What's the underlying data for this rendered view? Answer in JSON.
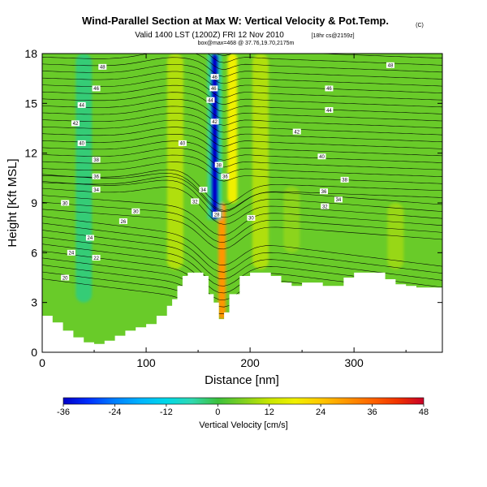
{
  "title": {
    "main": "Wind-Parallel Section at Max W: Vertical Velocity & Pot.Temp.",
    "copyright": "(C)",
    "valid": "Valid 1400 LST (1200Z) FRI 12 Nov 2010",
    "valid_suffix": "[18hr cs@2159z]",
    "subtitle": "box@max=468 @ 37.76,19.70,2175m"
  },
  "chart_data": {
    "type": "heatmap",
    "xlabel": "Distance [nm]",
    "ylabel": "Height [Kft MSL]",
    "xlim": [
      0,
      385
    ],
    "ylim": [
      0,
      18
    ],
    "x_ticks": [
      "0",
      "100",
      "200",
      "300"
    ],
    "y_ticks": [
      "0",
      "3",
      "6",
      "9",
      "12",
      "15",
      "18"
    ],
    "colorbar": {
      "label": "Vertical Velocity [cm/s]",
      "range": [
        -36,
        48
      ],
      "tick_labels": [
        "-36",
        "-24",
        "-12",
        "0",
        "12",
        "24",
        "36",
        "48"
      ],
      "stops": [
        {
          "v": -36,
          "c": "#0000c8"
        },
        {
          "v": -30,
          "c": "#0030ff"
        },
        {
          "v": -24,
          "c": "#0080ff"
        },
        {
          "v": -18,
          "c": "#00b4ff"
        },
        {
          "v": -12,
          "c": "#00d8e8"
        },
        {
          "v": -6,
          "c": "#30d8b0"
        },
        {
          "v": 0,
          "c": "#3cc03c"
        },
        {
          "v": 6,
          "c": "#80d020"
        },
        {
          "v": 12,
          "c": "#c8e600"
        },
        {
          "v": 18,
          "c": "#f0f000"
        },
        {
          "v": 24,
          "c": "#ffc800"
        },
        {
          "v": 30,
          "c": "#ff9600"
        },
        {
          "v": 36,
          "c": "#ff6400"
        },
        {
          "v": 42,
          "c": "#f03200"
        },
        {
          "v": 48,
          "c": "#c80028"
        }
      ]
    },
    "terrain": [
      [
        0,
        2.2
      ],
      [
        10,
        1.8
      ],
      [
        20,
        1.3
      ],
      [
        30,
        0.9
      ],
      [
        40,
        0.6
      ],
      [
        50,
        0.5
      ],
      [
        60,
        0.7
      ],
      [
        70,
        1.0
      ],
      [
        80,
        1.3
      ],
      [
        90,
        1.5
      ],
      [
        100,
        1.7
      ],
      [
        110,
        2.2
      ],
      [
        120,
        2.8
      ],
      [
        125,
        3.2
      ],
      [
        130,
        4.0
      ],
      [
        135,
        4.6
      ],
      [
        140,
        4.8
      ],
      [
        150,
        4.8
      ],
      [
        155,
        4.6
      ],
      [
        160,
        3.5
      ],
      [
        165,
        3.0
      ],
      [
        170,
        2.0
      ],
      [
        175,
        2.4
      ],
      [
        180,
        3.5
      ],
      [
        190,
        4.6
      ],
      [
        200,
        4.8
      ],
      [
        220,
        4.6
      ],
      [
        230,
        4.2
      ],
      [
        240,
        4.0
      ],
      [
        250,
        4.2
      ],
      [
        270,
        4.0
      ],
      [
        290,
        4.5
      ],
      [
        300,
        4.8
      ],
      [
        320,
        4.8
      ],
      [
        330,
        4.4
      ],
      [
        340,
        4.1
      ],
      [
        350,
        4.0
      ],
      [
        360,
        3.9
      ],
      [
        370,
        3.9
      ],
      [
        385,
        3.9
      ]
    ],
    "vertical_velocity_features": [
      {
        "name": "downdraft core",
        "x": 166,
        "z_range": [
          8,
          18
        ],
        "value": -36
      },
      {
        "name": "updraft core",
        "x": 173,
        "z_range": [
          2,
          9
        ],
        "value": 30
      },
      {
        "name": "upper updraft band",
        "x": 183,
        "z_range": [
          9,
          18
        ],
        "value": 18
      },
      {
        "name": "updraft plume",
        "x": 128,
        "z_range": [
          5,
          18
        ],
        "value": 10
      },
      {
        "name": "updraft plume",
        "x": 210,
        "z_range": [
          5,
          18
        ],
        "value": 10
      },
      {
        "name": "weak lift",
        "x": 240,
        "z_range": [
          6,
          10
        ],
        "value": 7
      },
      {
        "name": "weak lift",
        "x": 340,
        "z_range": [
          5,
          9
        ],
        "value": 8
      },
      {
        "name": "weak sink",
        "x": 40,
        "z_range": [
          3,
          18
        ],
        "value": -3
      }
    ],
    "contour_labels": [
      {
        "text": "48",
        "x": 58,
        "z": 17.2
      },
      {
        "text": "46",
        "x": 52,
        "z": 15.9
      },
      {
        "text": "44",
        "x": 38,
        "z": 14.9
      },
      {
        "text": "42",
        "x": 32,
        "z": 13.8
      },
      {
        "text": "40",
        "x": 38,
        "z": 12.6
      },
      {
        "text": "38",
        "x": 52,
        "z": 11.6
      },
      {
        "text": "36",
        "x": 52,
        "z": 10.6
      },
      {
        "text": "34",
        "x": 52,
        "z": 9.8
      },
      {
        "text": "30",
        "x": 22,
        "z": 9.0
      },
      {
        "text": "30",
        "x": 90,
        "z": 8.5
      },
      {
        "text": "26",
        "x": 78,
        "z": 7.9
      },
      {
        "text": "24",
        "x": 46,
        "z": 6.9
      },
      {
        "text": "24",
        "x": 28,
        "z": 6.0
      },
      {
        "text": "22",
        "x": 52,
        "z": 5.7
      },
      {
        "text": "20",
        "x": 22,
        "z": 4.5
      },
      {
        "text": "48",
        "x": 335,
        "z": 17.3
      },
      {
        "text": "46",
        "x": 276,
        "z": 15.9
      },
      {
        "text": "44",
        "x": 276,
        "z": 14.6
      },
      {
        "text": "42",
        "x": 245,
        "z": 13.3
      },
      {
        "text": "40",
        "x": 269,
        "z": 11.8
      },
      {
        "text": "38",
        "x": 291,
        "z": 10.4
      },
      {
        "text": "36",
        "x": 271,
        "z": 9.7
      },
      {
        "text": "34",
        "x": 285,
        "z": 9.2
      },
      {
        "text": "32",
        "x": 272,
        "z": 8.8
      },
      {
        "text": "30",
        "x": 201,
        "z": 8.1
      },
      {
        "text": "40",
        "x": 135,
        "z": 12.6
      },
      {
        "text": "46",
        "x": 166,
        "z": 16.6
      },
      {
        "text": "46",
        "x": 165,
        "z": 15.9
      },
      {
        "text": "44",
        "x": 162,
        "z": 15.2
      },
      {
        "text": "42",
        "x": 166,
        "z": 13.9
      },
      {
        "text": "38",
        "x": 170,
        "z": 11.3
      },
      {
        "text": "36",
        "x": 176,
        "z": 10.6
      },
      {
        "text": "34",
        "x": 155,
        "z": 9.8
      },
      {
        "text": "32",
        "x": 147,
        "z": 9.1
      },
      {
        "text": "28",
        "x": 168,
        "z": 8.3
      }
    ]
  }
}
